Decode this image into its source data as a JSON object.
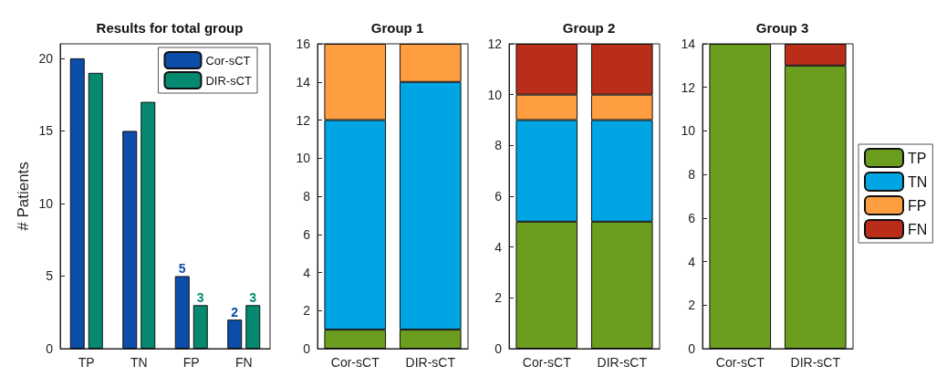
{
  "chart_data": [
    {
      "type": "bar",
      "title": "Results for total group",
      "ylabel": "# Patients",
      "categories": [
        "TP",
        "TN",
        "FP",
        "FN"
      ],
      "series": [
        {
          "name": "Cor-sCT",
          "color": "#0b4da8",
          "values": [
            20,
            15,
            5,
            2
          ],
          "value_labels": [
            null,
            null,
            "5",
            "2"
          ]
        },
        {
          "name": "DIR-sCT",
          "color": "#058a70",
          "values": [
            19,
            17,
            3,
            3
          ],
          "value_labels": [
            null,
            null,
            "3",
            "3"
          ]
        }
      ],
      "ylim": [
        0,
        21
      ],
      "yticks": [
        0,
        5,
        10,
        15,
        20
      ],
      "grid": false,
      "legend": "top right"
    },
    {
      "type": "bar",
      "title": "Group 1",
      "stacked": true,
      "categories": [
        "Cor-sCT",
        "DIR-sCT"
      ],
      "series": [
        {
          "color": "#6b9e1f",
          "values": [
            1,
            1
          ]
        },
        {
          "color": "#00a5e3",
          "values": [
            11,
            13
          ]
        },
        {
          "color": "#ff9e40",
          "values": [
            4,
            2
          ]
        }
      ],
      "ylim": [
        0,
        16
      ],
      "yticks": [
        0,
        2,
        4,
        6,
        8,
        10,
        12,
        14,
        16
      ],
      "grid": false
    },
    {
      "type": "bar",
      "title": "Group 2",
      "stacked": true,
      "categories": [
        "Cor-sCT",
        "DIR-sCT"
      ],
      "series": [
        {
          "color": "#6b9e1f",
          "values": [
            5,
            5
          ]
        },
        {
          "color": "#00a5e3",
          "values": [
            4,
            4
          ]
        },
        {
          "color": "#ff9e40",
          "values": [
            1,
            1
          ]
        },
        {
          "color": "#b92d19",
          "values": [
            2,
            2
          ]
        }
      ],
      "ylim": [
        0,
        12
      ],
      "yticks": [
        0,
        2,
        4,
        6,
        8,
        10,
        12
      ],
      "grid": false
    },
    {
      "type": "bar",
      "title": "Group 3",
      "stacked": true,
      "categories": [
        "Cor-sCT",
        "DIR-sCT"
      ],
      "series": [
        {
          "name": "TP",
          "color": "#6b9e1f",
          "values": [
            14,
            13
          ]
        },
        {
          "name": "TN",
          "color": "#00a5e3",
          "values": [
            null,
            null
          ]
        },
        {
          "name": "FP",
          "color": "#ff9e40",
          "values": [
            null,
            null
          ]
        },
        {
          "name": "FN",
          "color": "#b92d19",
          "values": [
            null,
            1
          ]
        }
      ],
      "ylim": [
        0,
        14
      ],
      "yticks": [
        0,
        2,
        4,
        6,
        8,
        10,
        12,
        14
      ],
      "grid": false,
      "legend": "right"
    }
  ]
}
